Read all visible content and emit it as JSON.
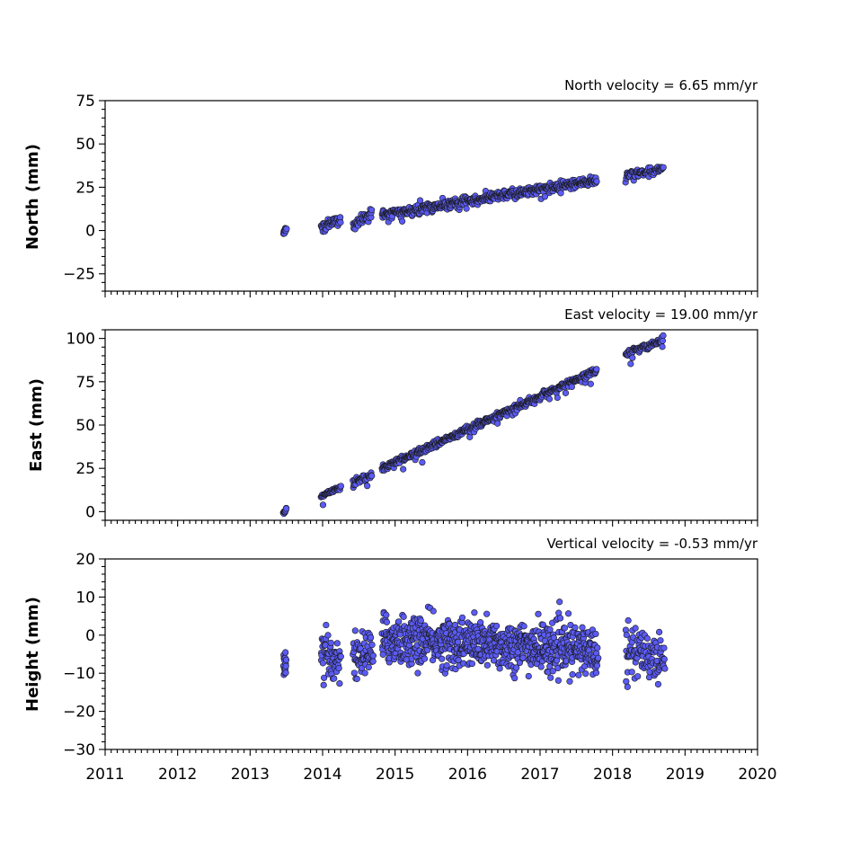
{
  "colors": {
    "marker_fill": "#5b5bf5",
    "marker_edge": "#1a1a1a",
    "axes": "#000000"
  },
  "chart_data": [
    {
      "type": "scatter",
      "title": "North velocity = 6.65 mm/yr",
      "ylabel": "North (mm)",
      "xlim": [
        2011,
        2020
      ],
      "ylim": [
        -35,
        75
      ],
      "yticks": [
        -25,
        0,
        25,
        50,
        75
      ],
      "x_tick_labels": [],
      "x": [
        2013.47,
        2014.02,
        2014.15,
        2014.45,
        2014.65,
        2014.85,
        2015.3,
        2015.8,
        2016.3,
        2016.8,
        2017.3,
        2017.75,
        2018.2,
        2018.6
      ],
      "y": [
        0,
        3,
        6,
        4,
        10,
        9,
        12,
        16,
        19,
        23,
        25,
        29,
        33,
        36
      ],
      "segments": [
        {
          "x0": 2013.46,
          "x1": 2013.5,
          "y0": -1,
          "y1": 1,
          "spread": 1.5,
          "n": 10
        },
        {
          "x0": 2013.98,
          "x1": 2014.25,
          "y0": 2.5,
          "y1": 6,
          "spread": 2.5,
          "n": 45
        },
        {
          "x0": 2014.42,
          "x1": 2014.68,
          "y0": 2,
          "y1": 11,
          "spread": 2.5,
          "n": 40
        },
        {
          "x0": 2014.82,
          "x1": 2017.78,
          "y0": 9,
          "y1": 29,
          "spread": 2.3,
          "n": 560
        },
        {
          "x0": 2018.18,
          "x1": 2018.7,
          "y0": 32,
          "y1": 35.5,
          "spread": 1.7,
          "n": 80
        }
      ]
    },
    {
      "type": "scatter",
      "title": "East velocity = 19.00 mm/yr",
      "ylabel": "East (mm)",
      "xlim": [
        2011,
        2020
      ],
      "ylim": [
        -5,
        105
      ],
      "yticks": [
        0,
        25,
        50,
        75,
        100
      ],
      "x_tick_labels": [],
      "x": [
        2013.47,
        2014.0,
        2014.15,
        2014.45,
        2014.65,
        2014.85,
        2015.3,
        2015.8,
        2016.3,
        2016.8,
        2017.3,
        2017.75,
        2018.2,
        2018.6
      ],
      "y": [
        0,
        9,
        13,
        17,
        20,
        26,
        34,
        43,
        52,
        61,
        72,
        81,
        91,
        97
      ],
      "segments": [
        {
          "x0": 2013.46,
          "x1": 2013.5,
          "y0": -1,
          "y1": 1.5,
          "spread": 1.3,
          "n": 10
        },
        {
          "x0": 2013.98,
          "x1": 2014.25,
          "y0": 8.5,
          "y1": 14,
          "spread": 1.6,
          "n": 45
        },
        {
          "x0": 2014.42,
          "x1": 2014.68,
          "y0": 17,
          "y1": 21,
          "spread": 2.2,
          "n": 40
        },
        {
          "x0": 2014.82,
          "x1": 2017.78,
          "y0": 25,
          "y1": 81.5,
          "spread": 1.6,
          "n": 560
        },
        {
          "x0": 2018.18,
          "x1": 2018.7,
          "y0": 91,
          "y1": 99,
          "spread": 1.8,
          "n": 80
        }
      ]
    },
    {
      "type": "scatter",
      "title": "Vertical velocity = -0.53 mm/yr",
      "ylabel": "Height (mm)",
      "xlim": [
        2011,
        2020
      ],
      "ylim": [
        -30,
        20
      ],
      "yticks": [
        -30,
        -20,
        -10,
        0,
        10,
        20
      ],
      "x_tick_labels": [
        "2011",
        "2012",
        "2013",
        "2014",
        "2015",
        "2016",
        "2017",
        "2018",
        "2019",
        "2020"
      ],
      "x": [
        2013.47,
        2014.05,
        2014.5,
        2015.0,
        2015.5,
        2016.0,
        2016.5,
        2017.0,
        2017.5,
        2018.3,
        2018.6
      ],
      "y": [
        -9,
        -6,
        -5,
        -1,
        0,
        -1,
        -3,
        -2,
        -4,
        -4,
        -7
      ],
      "segments": [
        {
          "x0": 2013.46,
          "x1": 2013.5,
          "y0": -9,
          "y1": -9,
          "spread": 5,
          "n": 14
        },
        {
          "x0": 2013.98,
          "x1": 2014.25,
          "y0": -6,
          "y1": -6,
          "spread": 5.5,
          "n": 60
        },
        {
          "x0": 2014.42,
          "x1": 2014.7,
          "y0": -6,
          "y1": -4,
          "spread": 5.5,
          "n": 60
        },
        {
          "x0": 2014.82,
          "x1": 2017.8,
          "y0": -1,
          "y1": -4,
          "spread": 5.8,
          "n": 800
        },
        {
          "x0": 2018.18,
          "x1": 2018.72,
          "y0": -4,
          "y1": -6,
          "spread": 5.8,
          "n": 110
        }
      ]
    }
  ]
}
